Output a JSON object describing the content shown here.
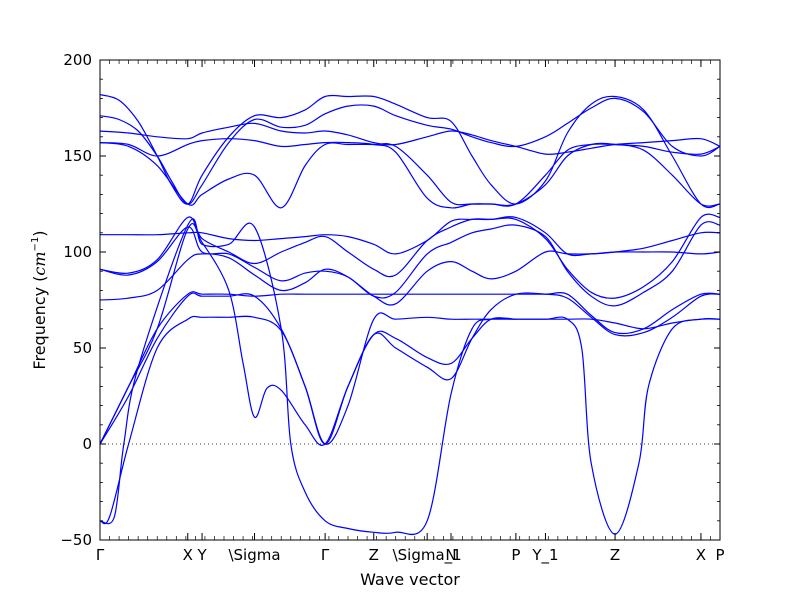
{
  "chart_data": {
    "type": "line",
    "title": "",
    "xlabel": "Wave vector",
    "ylabel": "Frequency",
    "ylabel_unit": "cm",
    "ylabel_unit_exp": "−1",
    "ylim": [
      -50,
      200
    ],
    "yticks": [
      "200",
      "150",
      "100",
      "50",
      "0",
      "−50"
    ],
    "ytick_values": [
      200,
      150,
      100,
      50,
      0,
      -50
    ],
    "xlim": [
      0,
      6.5
    ],
    "xticks": [
      {
        "label": "Γ",
        "x": 0.0
      },
      {
        "label": "X",
        "x": 0.92
      },
      {
        "label": "Y",
        "x": 1.07
      },
      {
        "label": "\\Sigma",
        "x": 1.62
      },
      {
        "label": "Γ",
        "x": 2.36
      },
      {
        "label": "Z",
        "x": 2.87
      },
      {
        "label": "\\Sigma_1",
        "x": 3.43
      },
      {
        "label": "N",
        "x": 3.68
      },
      {
        "label": "P",
        "x": 4.36
      },
      {
        "label": "Y_1",
        "x": 4.67
      },
      {
        "label": "Z",
        "x": 5.4
      },
      {
        "label": "X",
        "x": 6.3
      },
      {
        "label": "P",
        "x": 6.5
      }
    ],
    "zero_line": true,
    "line_color": "#0000ff",
    "series": [
      {
        "x": [
          0,
          0.2,
          0.4,
          0.6,
          0.75,
          0.92,
          1.07,
          1.35,
          1.62,
          1.9,
          2.15,
          2.36,
          2.6,
          2.87,
          3.1,
          3.43,
          3.68,
          3.9,
          4.1,
          4.36,
          4.67,
          4.9,
          5.15,
          5.4,
          5.7,
          6.0,
          6.3,
          6.5
        ],
        "y": [
          182,
          179,
          168,
          150,
          135,
          125,
          140,
          160,
          171,
          170,
          174,
          181,
          181,
          181,
          177,
          170,
          168,
          150,
          135,
          125,
          137,
          162,
          177,
          181,
          174,
          150,
          125,
          125
        ]
      },
      {
        "x": [
          0,
          0.2,
          0.4,
          0.6,
          0.75,
          0.92,
          1.07,
          1.35,
          1.62,
          1.9,
          2.15,
          2.36,
          2.6,
          2.87,
          3.1,
          3.43,
          3.68,
          3.9,
          4.1,
          4.36,
          4.67,
          4.9,
          5.15,
          5.4,
          5.7,
          6.0,
          6.3,
          6.5
        ],
        "y": [
          171,
          169,
          163,
          150,
          137,
          125,
          135,
          157,
          169,
          165,
          166,
          172,
          176,
          176,
          171,
          166,
          164,
          160,
          157,
          155,
          160,
          167,
          175,
          180,
          173,
          155,
          150,
          155
        ]
      },
      {
        "x": [
          0,
          0.3,
          0.6,
          0.92,
          1.07,
          1.35,
          1.62,
          1.9,
          2.15,
          2.36,
          2.6,
          2.87,
          3.1,
          3.43,
          3.68,
          3.9,
          4.1,
          4.36,
          4.67,
          4.9,
          5.15,
          5.4,
          5.7,
          6.0,
          6.3,
          6.5
        ],
        "y": [
          163,
          162,
          160,
          159,
          162,
          165,
          167,
          163,
          162,
          163,
          161,
          157,
          156,
          160,
          163,
          161,
          158,
          155,
          151,
          152,
          154,
          156,
          157,
          158,
          159,
          155
        ]
      },
      {
        "x": [
          0,
          0.3,
          0.6,
          0.92,
          1.07,
          1.35,
          1.62,
          1.9,
          2.15,
          2.36,
          2.6,
          2.87,
          3.1,
          3.43,
          3.68,
          3.9,
          4.1,
          4.36,
          4.67,
          4.9,
          5.15,
          5.4,
          5.7,
          6.0,
          6.3,
          6.5
        ],
        "y": [
          157,
          155,
          145,
          125,
          130,
          138,
          140,
          123,
          145,
          156,
          156,
          156,
          155,
          140,
          126,
          125,
          125,
          125,
          135,
          150,
          156,
          156,
          153,
          140,
          125,
          125
        ]
      },
      {
        "x": [
          0,
          0.3,
          0.6,
          0.92,
          1.07,
          1.35,
          1.62,
          1.9,
          2.15,
          2.36,
          2.6,
          2.87,
          3.1,
          3.43,
          3.68,
          3.9,
          4.1,
          4.36,
          4.67,
          4.9,
          5.15,
          5.4,
          5.7,
          6.0,
          6.3,
          6.5
        ],
        "y": [
          157,
          156,
          150,
          156,
          158,
          159,
          158,
          155,
          156,
          157,
          157,
          156,
          152,
          128,
          123,
          125,
          125,
          125,
          140,
          153,
          156,
          156,
          155,
          152,
          151,
          155
        ]
      },
      {
        "x": [
          0,
          0.3,
          0.6,
          0.92,
          1.07,
          1.35,
          1.62,
          1.9,
          2.15,
          2.36,
          2.6,
          2.87,
          3.1,
          3.43,
          3.68,
          3.9,
          4.1,
          4.36,
          4.67,
          4.9,
          5.15,
          5.4,
          5.7,
          6.0,
          6.3,
          6.5
        ],
        "y": [
          109,
          109,
          109,
          110,
          110,
          107,
          106,
          107,
          108,
          109,
          108,
          104,
          99,
          106,
          116,
          117,
          117,
          118,
          110,
          99,
          99,
          100,
          102,
          106,
          110,
          110
        ]
      },
      {
        "x": [
          0,
          0.3,
          0.6,
          0.92,
          1.07,
          1.35,
          1.62,
          1.9,
          2.15,
          2.36,
          2.6,
          2.87,
          3.1,
          3.43,
          3.68,
          3.9,
          4.1,
          4.36,
          4.67,
          4.9,
          5.15,
          5.4,
          5.7,
          6.0,
          6.3,
          6.5
        ],
        "y": [
          91,
          89,
          96,
          118,
          107,
          100,
          94,
          100,
          105,
          108,
          100,
          91,
          88,
          106,
          113,
          117,
          117,
          117,
          107,
          91,
          79,
          76,
          82,
          95,
          118,
          118
        ]
      },
      {
        "x": [
          0,
          0.3,
          0.6,
          0.92,
          1.07,
          1.35,
          1.62,
          1.9,
          2.15,
          2.36,
          2.6,
          2.87,
          3.1,
          3.43,
          3.68,
          3.9,
          4.1,
          4.36,
          4.67,
          4.9,
          5.15,
          5.4,
          5.7,
          6.0,
          6.3,
          6.5
        ],
        "y": [
          91,
          88,
          95,
          113,
          100,
          99,
          92,
          85,
          89,
          90,
          87,
          77,
          79,
          99,
          105,
          110,
          112,
          114,
          108,
          90,
          77,
          72,
          79,
          90,
          114,
          114
        ]
      },
      {
        "x": [
          0,
          0.3,
          0.6,
          0.92,
          1.07,
          1.35,
          1.62,
          1.9,
          2.15,
          2.36,
          2.6,
          2.87,
          3.1,
          3.43,
          3.68,
          3.9,
          4.1,
          4.36,
          4.67,
          4.9,
          5.15,
          5.4,
          5.7,
          6.0,
          6.3,
          6.5
        ],
        "y": [
          75,
          76,
          80,
          96,
          99,
          97,
          88,
          80,
          84,
          91,
          87,
          77,
          73,
          90,
          95,
          90,
          86,
          90,
          100,
          99,
          99,
          100,
          100,
          100,
          99,
          100
        ]
      },
      {
        "x": [
          0,
          0.3,
          0.6,
          0.92,
          1.07,
          1.35,
          1.62,
          1.9,
          2.15,
          2.36,
          2.6,
          2.87,
          3.1,
          3.43,
          3.68,
          3.9,
          4.1,
          4.36,
          4.67,
          4.9,
          5.15,
          5.4,
          5.7,
          6.0,
          6.3,
          6.5
        ],
        "y": [
          0,
          30,
          60,
          78,
          78,
          78,
          77,
          78,
          78,
          78,
          78,
          78,
          78,
          78,
          78,
          78,
          78,
          78,
          78,
          78,
          67,
          58,
          60,
          70,
          78,
          78
        ]
      },
      {
        "x": [
          0,
          0.3,
          0.6,
          0.92,
          1.07,
          1.35,
          1.62,
          1.9,
          2.15,
          2.36,
          2.6,
          2.87,
          3.1,
          3.43,
          3.68,
          3.9,
          4.1,
          4.36,
          4.67,
          4.9,
          5.15,
          5.4,
          5.7,
          6.0,
          6.3,
          6.5
        ],
        "y": [
          0,
          25,
          55,
          77,
          77,
          77,
          77,
          60,
          30,
          0,
          30,
          57,
          50,
          40,
          34,
          55,
          70,
          78,
          78,
          76,
          66,
          57,
          58,
          66,
          77,
          78
        ]
      },
      {
        "x": [
          0,
          0.1,
          0.3,
          0.6,
          0.92,
          1.07,
          1.35,
          1.62,
          1.9,
          2.15,
          2.36,
          2.6,
          2.87,
          3.1,
          3.43,
          3.68,
          3.9,
          4.1,
          4.36,
          4.67,
          4.9,
          5.15,
          5.4,
          5.7,
          6.0,
          6.3,
          6.5
        ],
        "y": [
          -40,
          -38,
          0,
          50,
          65,
          66,
          66,
          66,
          59,
          30,
          0,
          20,
          65,
          65,
          66,
          65,
          65,
          65,
          65,
          65,
          65,
          65,
          63,
          60,
          63,
          65,
          65
        ]
      },
      {
        "x": [
          0,
          0.3,
          0.6,
          0.92,
          1.07,
          1.35,
          1.5,
          1.62,
          1.75,
          1.9,
          2.15,
          2.36,
          2.6,
          2.87,
          3.1,
          3.43,
          3.68,
          3.9,
          4.1,
          4.36
        ],
        "y": [
          0,
          30,
          60,
          112,
          105,
          80,
          42,
          14,
          29,
          28,
          10,
          0,
          30,
          57,
          55,
          45,
          42,
          55,
          65,
          65
        ]
      },
      {
        "x": [
          0,
          0.15,
          0.25,
          0.4,
          0.92,
          1.07,
          1.35,
          1.62,
          1.9,
          2.0,
          2.15,
          2.36,
          2.6,
          2.87,
          3.1,
          3.43,
          3.68,
          3.9,
          4.1,
          4.36,
          4.67,
          4.9,
          5.05,
          5.15,
          5.4,
          5.65,
          5.75,
          6.0,
          6.3,
          6.5
        ],
        "y": [
          -40,
          -38,
          0,
          40,
          114,
          104,
          104,
          113,
          60,
          0,
          -25,
          -40,
          -44,
          -46,
          -46,
          -40,
          26,
          60,
          65,
          65,
          65,
          65,
          50,
          -10,
          -47,
          -10,
          30,
          60,
          65,
          65
        ]
      }
    ]
  }
}
